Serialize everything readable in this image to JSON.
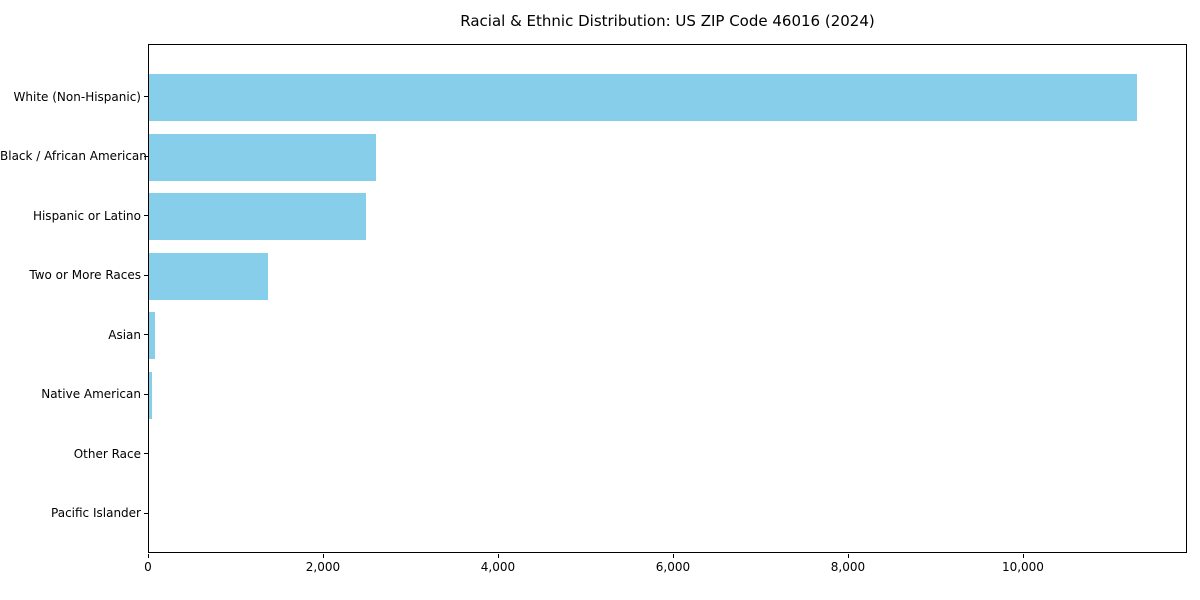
{
  "title": "Racial & Ethnic Distribution: US ZIP Code 46016 (2024)",
  "chart_data": {
    "type": "bar",
    "orientation": "horizontal",
    "title": "Racial & Ethnic Distribution: US ZIP Code 46016 (2024)",
    "xlabel": "",
    "ylabel": "",
    "categories": [
      "White (Non-Hispanic)",
      "Black / African American",
      "Hispanic or Latino",
      "Two or More Races",
      "Asian",
      "Native American",
      "Other Race",
      "Pacific Islander"
    ],
    "values": [
      11290,
      2590,
      2480,
      1365,
      70,
      40,
      0,
      0
    ],
    "xlim": [
      0,
      11875
    ],
    "xticks": [
      0,
      2000,
      4000,
      6000,
      8000,
      10000
    ],
    "xtick_labels": [
      "0",
      "2,000",
      "4,000",
      "6,000",
      "8,000",
      "10,000"
    ],
    "bar_color": "#87CEEB",
    "grid": false,
    "legend": null
  }
}
